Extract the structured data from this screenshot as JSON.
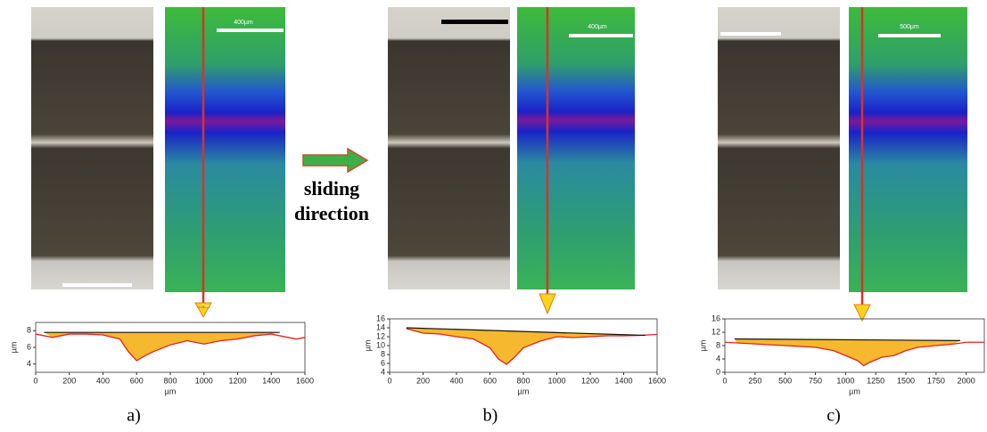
{
  "arrow_label": "sliding direction",
  "panels": [
    {
      "label": "a)",
      "scale_label": "400µm"
    },
    {
      "label": "b)",
      "scale_label": "400µm"
    },
    {
      "label": "c)",
      "scale_label": "500µm"
    }
  ],
  "chart_data": [
    {
      "type": "area",
      "xlabel": "µm",
      "ylabel": "µm",
      "line_color": "#e8211b",
      "fill_color": "#f5b82e",
      "x": [
        0,
        100,
        200,
        300,
        400,
        500,
        550,
        600,
        650,
        700,
        800,
        900,
        1000,
        1100,
        1200,
        1300,
        1400,
        1500,
        1550,
        1600
      ],
      "values": [
        7.6,
        7.2,
        7.6,
        7.6,
        7.5,
        7.0,
        5.5,
        4.4,
        5.0,
        5.5,
        6.3,
        6.8,
        6.4,
        6.8,
        7.0,
        7.4,
        7.6,
        7.2,
        7.0,
        7.2
      ],
      "reference": {
        "x": [
          50,
          1450
        ],
        "values": [
          7.8,
          7.8
        ]
      },
      "xlim": [
        0,
        1600
      ],
      "ylim": [
        3,
        9
      ],
      "xticks": [
        0,
        200,
        400,
        600,
        800,
        1000,
        1200,
        1400,
        1600
      ],
      "yticks": [
        4,
        6,
        8
      ]
    },
    {
      "type": "area",
      "xlabel": "µm",
      "ylabel": "µm",
      "line_color": "#e8211b",
      "fill_color": "#f5b82e",
      "x": [
        100,
        200,
        300,
        400,
        500,
        600,
        650,
        700,
        750,
        800,
        900,
        1000,
        1100,
        1200,
        1300,
        1400,
        1500,
        1600
      ],
      "values": [
        13.8,
        12.8,
        12.6,
        12.0,
        11.5,
        9.5,
        7.0,
        5.8,
        7.5,
        9.5,
        11.0,
        12.0,
        11.8,
        12.0,
        12.2,
        12.2,
        12.3,
        12.5
      ],
      "reference": {
        "x": [
          100,
          1530
        ],
        "values": [
          14,
          12.3
        ]
      },
      "xlim": [
        0,
        1600
      ],
      "ylim": [
        4,
        16
      ],
      "xticks": [
        0,
        200,
        400,
        600,
        800,
        1000,
        1200,
        1400,
        1600
      ],
      "yticks": [
        4,
        6,
        8,
        10,
        12,
        14,
        16
      ]
    },
    {
      "type": "area",
      "xlabel": "µm",
      "ylabel": "µm",
      "line_color": "#e8211b",
      "fill_color": "#f5b82e",
      "x": [
        0,
        100,
        250,
        500,
        750,
        900,
        1000,
        1100,
        1150,
        1200,
        1300,
        1400,
        1500,
        1600,
        1750,
        1900,
        2000,
        2150
      ],
      "values": [
        9,
        8.8,
        8.5,
        8,
        7.5,
        6.5,
        5,
        3.5,
        2,
        3,
        4.5,
        5,
        6.5,
        7.5,
        8,
        8.5,
        9,
        9
      ],
      "reference": {
        "x": [
          80,
          1950
        ],
        "values": [
          10,
          9.5
        ]
      },
      "xlim": [
        0,
        2150
      ],
      "ylim": [
        0,
        16
      ],
      "xticks": [
        0,
        250,
        500,
        750,
        1000,
        1250,
        1500,
        1750,
        2000
      ],
      "yticks": [
        0,
        4,
        8,
        12,
        16
      ]
    }
  ]
}
